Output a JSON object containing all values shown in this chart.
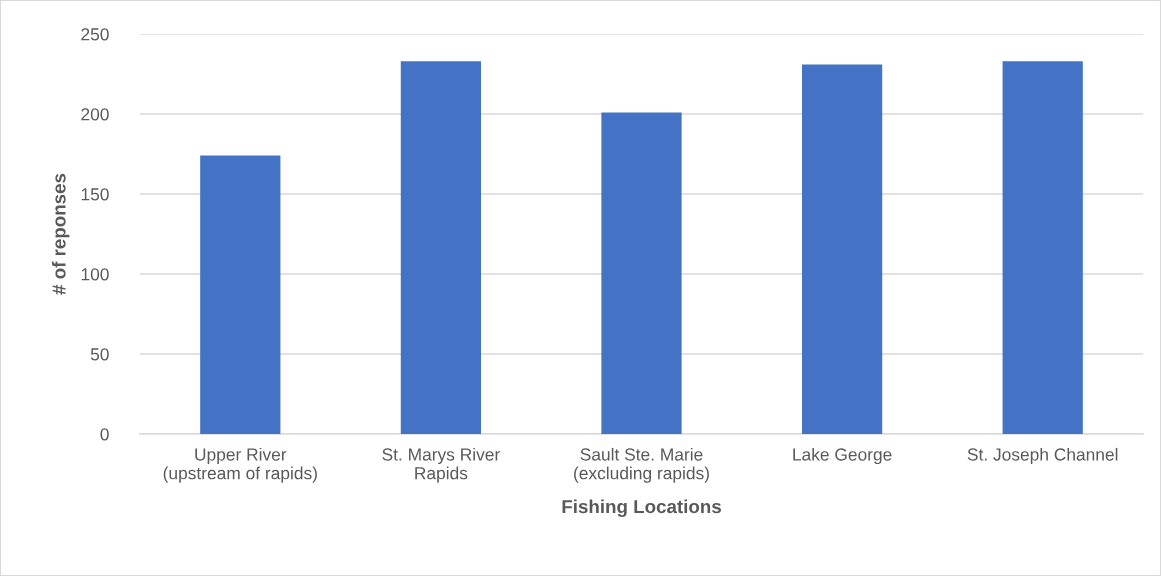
{
  "chart_data": {
    "type": "bar",
    "xlabel": "Fishing Locations",
    "ylabel": "# of reponses",
    "categories": [
      "Upper River\n(upstream of rapids)",
      "St. Marys River\nRapids",
      "Sault Ste. Marie\n(excluding rapids)",
      "Lake George",
      "St. Joseph Channel"
    ],
    "values": [
      174,
      233,
      201,
      231,
      233
    ],
    "color": "#4472c4",
    "ylim": [
      0,
      250
    ],
    "yticks": [
      0,
      50,
      100,
      150,
      200,
      250
    ],
    "grid": "y",
    "legend": false
  }
}
